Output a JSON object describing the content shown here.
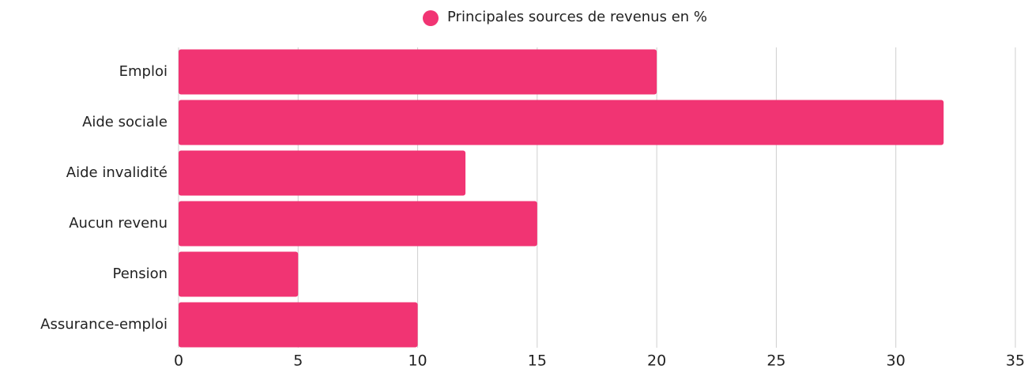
{
  "chart_data": {
    "type": "bar",
    "orientation": "horizontal",
    "categories": [
      "Emploi",
      "Aide sociale",
      "Aide invalidité",
      "Aucun revenu",
      "Pension",
      "Assurance-emploi"
    ],
    "series": [
      {
        "name": "Principales sources de revenus en %",
        "color": "#f13473",
        "values": [
          20,
          32,
          12,
          15,
          5,
          10
        ]
      }
    ],
    "xlim": [
      0,
      35
    ],
    "xticks": [
      0,
      5,
      10,
      15,
      20,
      25,
      30,
      35
    ],
    "grid": true,
    "legend": "top"
  }
}
